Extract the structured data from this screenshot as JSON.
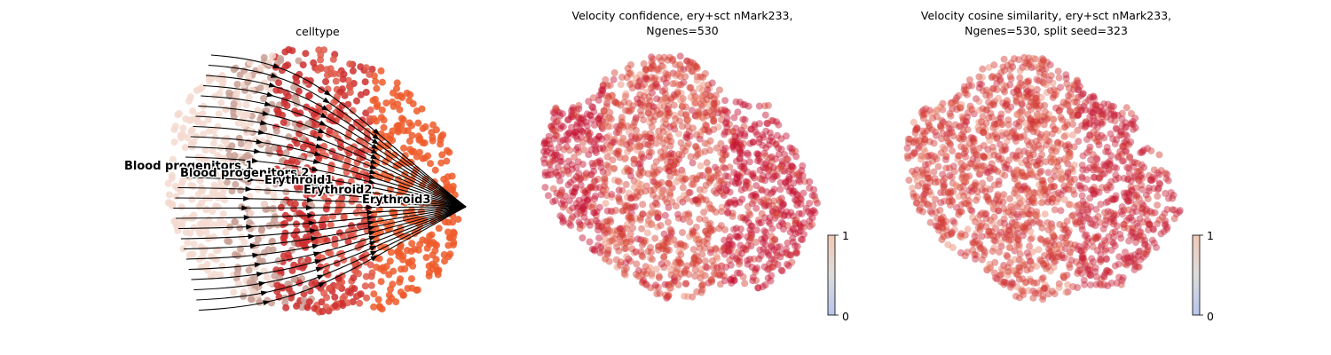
{
  "chart_data": [
    {
      "type": "scatter",
      "title": "celltype",
      "plot_kind": "embedding with velocity streamlines",
      "point_colors": {
        "Blood progenitors 1": "#f3d9cf",
        "Blood progenitors 2": "#c9a095",
        "Erythroid1": "#cc2f2f",
        "Erythroid2": "#e05a4a",
        "Erythroid3": "#ef5a2a"
      },
      "cluster_labels": [
        "Blood progenitors 1",
        "Blood progenitors 2",
        "Erythroid1",
        "Erythroid2",
        "Erythroid3"
      ],
      "streamline_color": "#000000"
    },
    {
      "type": "scatter",
      "title_lines": [
        "Velocity confidence, ery+sct nMark233,",
        "Ngenes=530"
      ],
      "colorbar": {
        "ticks": [
          "0",
          "1"
        ],
        "range": [
          0,
          1
        ],
        "colormap": "coolwarm",
        "low_color": "#b7c4ec",
        "high_color": "#f1c9b6"
      },
      "point_colors": {
        "high": "#c40e2e",
        "mid": "#d33b30",
        "light": "#e8836a"
      }
    },
    {
      "type": "scatter",
      "title_lines": [
        "Velocity cosine similarity, ery+sct nMark233,",
        "Ngenes=530, split seed=323"
      ],
      "colorbar": {
        "ticks": [
          "0",
          "1"
        ],
        "range": [
          0,
          1
        ],
        "colormap": "coolwarm",
        "low_color": "#b7c4ec",
        "high_color": "#f1c9b6"
      },
      "point_colors": {
        "high": "#c8213a",
        "mid": "#d23a32",
        "light": "#e8836a"
      }
    }
  ]
}
